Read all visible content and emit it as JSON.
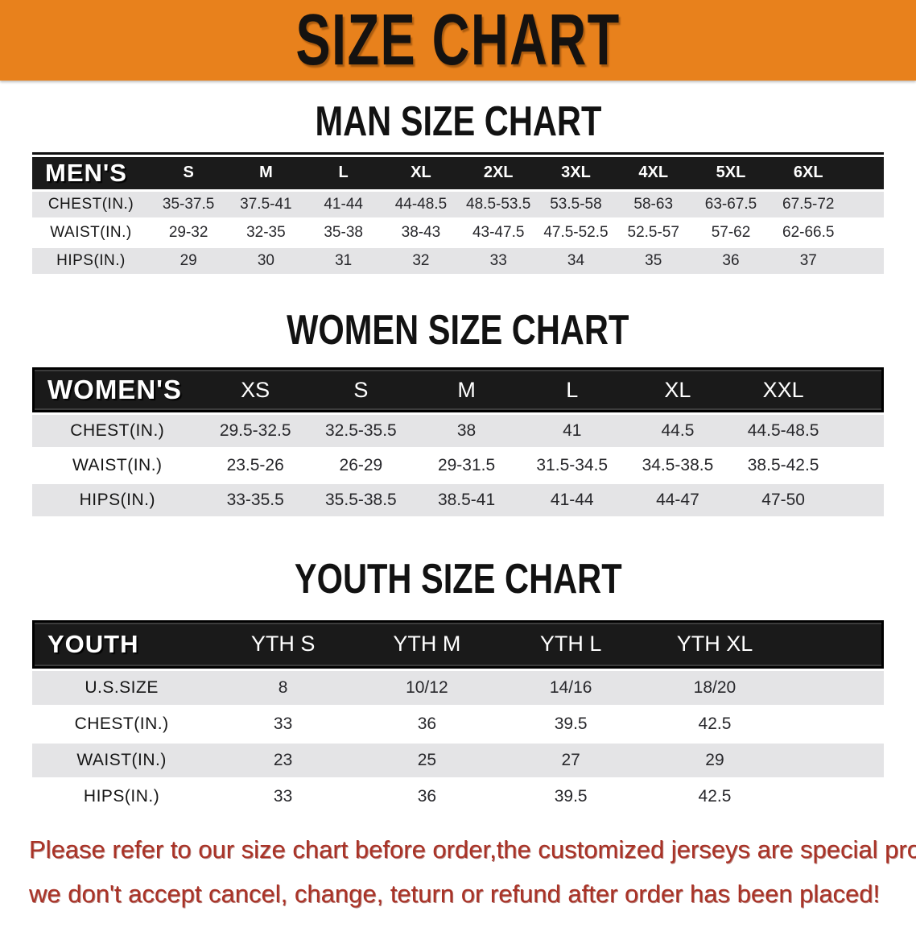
{
  "banner": {
    "title": "SIZE CHART"
  },
  "sections": [
    {
      "id": "men",
      "heading": "MAN SIZE CHART",
      "table": {
        "header_label": "MEN'S",
        "columns": [
          "S",
          "M",
          "L",
          "XL",
          "2XL",
          "3XL",
          "4XL",
          "5XL",
          "6XL"
        ],
        "rows": [
          {
            "label": "CHEST(IN.)",
            "values": [
              "35-37.5",
              "37.5-41",
              "41-44",
              "44-48.5",
              "48.5-53.5",
              "53.5-58",
              "58-63",
              "63-67.5",
              "67.5-72"
            ]
          },
          {
            "label": "WAIST(IN.)",
            "values": [
              "29-32",
              "32-35",
              "35-38",
              "38-43",
              "43-47.5",
              "47.5-52.5",
              "52.5-57",
              "57-62",
              "62-66.5"
            ]
          },
          {
            "label": "HIPS(IN.)",
            "values": [
              "29",
              "30",
              "31",
              "32",
              "33",
              "34",
              "35",
              "36",
              "37"
            ]
          }
        ]
      }
    },
    {
      "id": "women",
      "heading": "WOMEN SIZE CHART",
      "table": {
        "header_label": "WOMEN'S",
        "columns": [
          "XS",
          "S",
          "M",
          "L",
          "XL",
          "XXL"
        ],
        "rows": [
          {
            "label": "CHEST(IN.)",
            "values": [
              "29.5-32.5",
              "32.5-35.5",
              "38",
              "41",
              "44.5",
              "44.5-48.5"
            ]
          },
          {
            "label": "WAIST(IN.)",
            "values": [
              "23.5-26",
              "26-29",
              "29-31.5",
              "31.5-34.5",
              "34.5-38.5",
              "38.5-42.5"
            ]
          },
          {
            "label": "HIPS(IN.)",
            "values": [
              "33-35.5",
              "35.5-38.5",
              "38.5-41",
              "41-44",
              "44-47",
              "47-50"
            ]
          }
        ]
      }
    },
    {
      "id": "youth",
      "heading": "YOUTH SIZE CHART",
      "table": {
        "header_label": "YOUTH",
        "columns": [
          "YTH S",
          "YTH M",
          "YTH L",
          "YTH XL"
        ],
        "rows": [
          {
            "label": "U.S.SIZE",
            "values": [
              "8",
              "10/12",
              "14/16",
              "18/20"
            ]
          },
          {
            "label": "CHEST(IN.)",
            "values": [
              "33",
              "36",
              "39.5",
              "42.5"
            ]
          },
          {
            "label": "WAIST(IN.)",
            "values": [
              "23",
              "25",
              "27",
              "29"
            ]
          },
          {
            "label": "HIPS(IN.)",
            "values": [
              "33",
              "36",
              "39.5",
              "42.5"
            ]
          }
        ]
      }
    }
  ],
  "footer": {
    "line1": "Please refer to our size chart before order,the customized jerseys are special products,",
    "line2": "we don't accept cancel, change, teturn or refund after order has been placed!"
  },
  "colors": {
    "banner_orange": "#E8811C",
    "header_bar_black": "#1B1B1B",
    "row_shaded_gray": "#E4E4E6",
    "disclaimer_red": "#A93226"
  }
}
